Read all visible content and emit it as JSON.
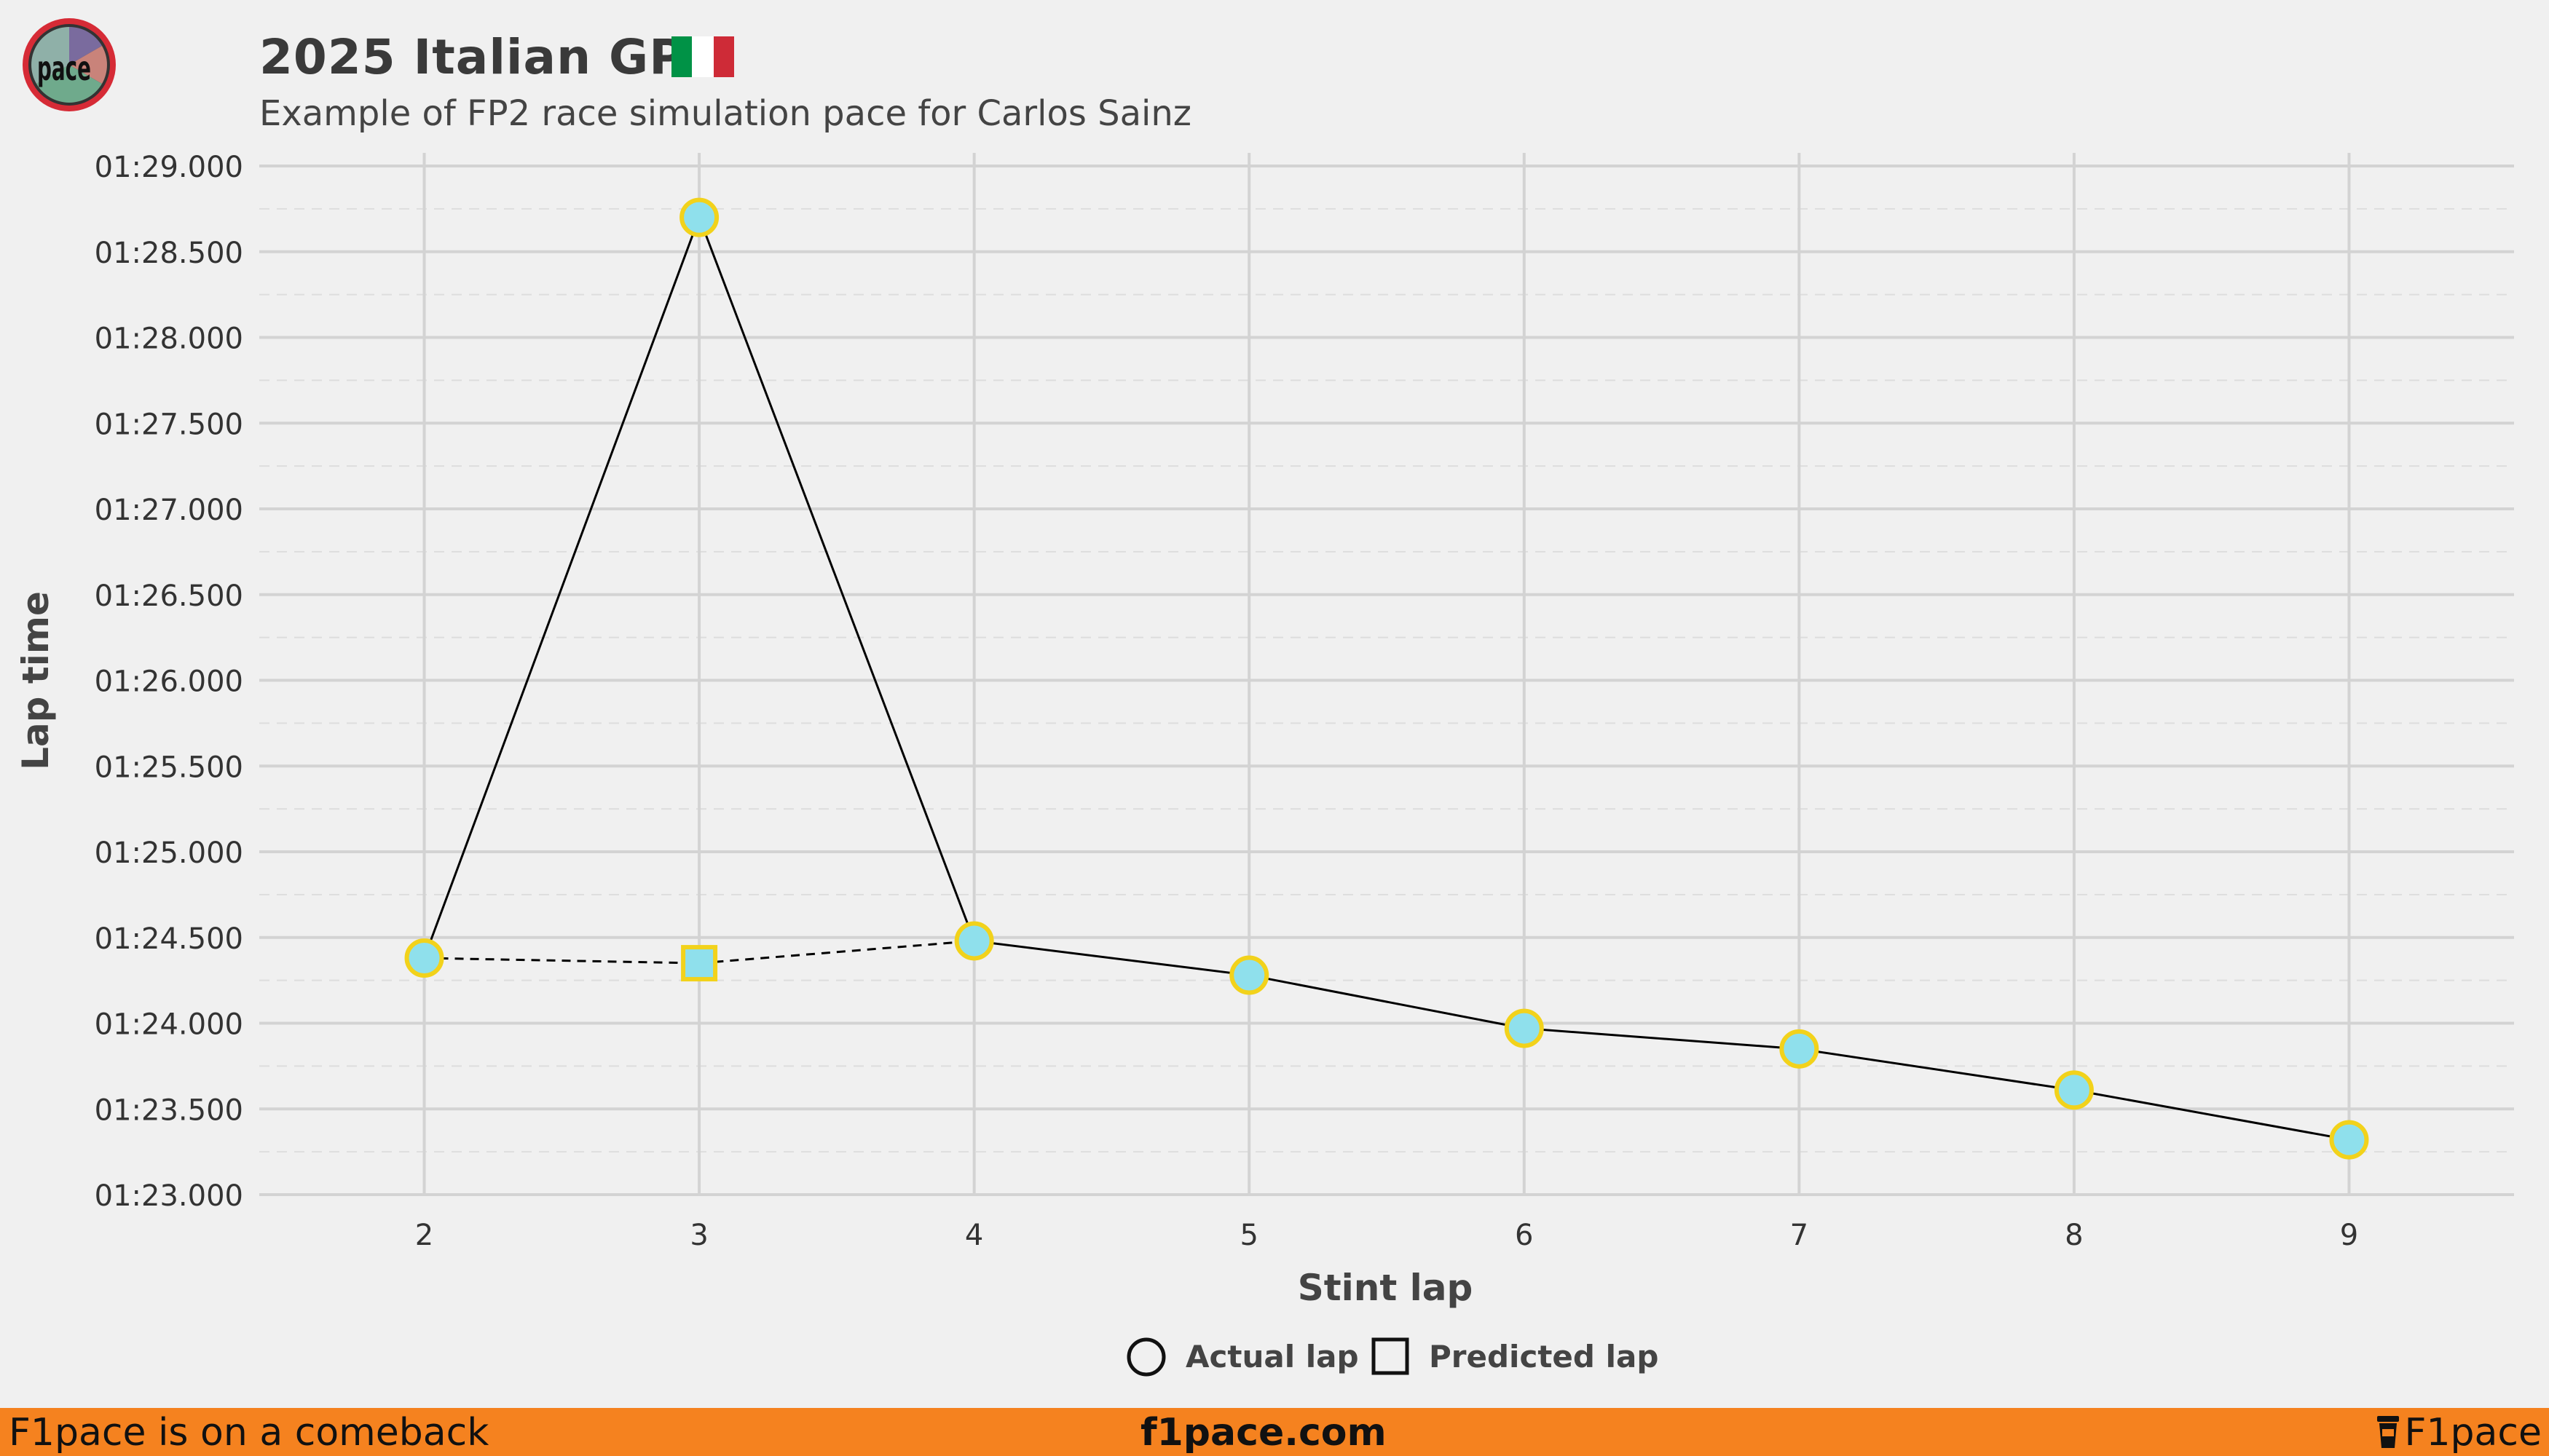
{
  "header": {
    "title": "2025 Italian GP",
    "subtitle": "Example of FP2 race simulation pace for Carlos Sainz",
    "flag_colors": [
      "#009246",
      "#ffffff",
      "#ce2b37"
    ],
    "logo_text": "pace"
  },
  "colors": {
    "background": "#f0f0f0",
    "marker_fill": "#8fe0ec",
    "marker_edge": "#f2d21b",
    "line": "#000000",
    "grid": "#d3d3d3",
    "footer": "#f5821f",
    "logo_ring": "#d62b36"
  },
  "chart_data": {
    "type": "line",
    "title": "2025 Italian GP",
    "subtitle": "Example of FP2 race simulation pace for Carlos Sainz",
    "xlabel": "Stint lap",
    "ylabel": "Lap time",
    "xlim": [
      1.4,
      9.6
    ],
    "ylim": [
      83.0,
      89.0
    ],
    "x_ticks": [
      2,
      3,
      4,
      5,
      6,
      7,
      8,
      9
    ],
    "y_ticks": [
      {
        "value": 83.0,
        "label": "01:23.000"
      },
      {
        "value": 83.5,
        "label": "01:23.500"
      },
      {
        "value": 84.0,
        "label": "01:24.000"
      },
      {
        "value": 84.5,
        "label": "01:24.500"
      },
      {
        "value": 85.0,
        "label": "01:25.000"
      },
      {
        "value": 85.5,
        "label": "01:25.500"
      },
      {
        "value": 86.0,
        "label": "01:26.000"
      },
      {
        "value": 86.5,
        "label": "01:26.500"
      },
      {
        "value": 87.0,
        "label": "01:27.000"
      },
      {
        "value": 87.5,
        "label": "01:27.500"
      },
      {
        "value": 88.0,
        "label": "01:28.000"
      },
      {
        "value": 88.5,
        "label": "01:28.500"
      },
      {
        "value": 89.0,
        "label": "01:29.000"
      }
    ],
    "grid": true,
    "series": [
      {
        "name": "Actual lap",
        "marker": "circle",
        "line_style": "solid",
        "x": [
          2,
          3,
          4,
          5,
          6,
          7,
          8,
          9
        ],
        "y": [
          84.38,
          88.7,
          84.48,
          84.28,
          83.97,
          83.85,
          83.61,
          83.32
        ]
      },
      {
        "name": "Predicted lap",
        "marker": "square",
        "line_style": "dashed",
        "x": [
          2,
          3,
          4
        ],
        "y": [
          84.38,
          84.35,
          84.48
        ],
        "marker_at": [
          3
        ]
      }
    ],
    "legend": {
      "position": "bottom-center",
      "entries": [
        "Actual lap",
        "Predicted lap"
      ]
    }
  },
  "footer": {
    "left": "F1pace is on a comeback",
    "center": "f1pace.com",
    "right": "F1pace"
  }
}
